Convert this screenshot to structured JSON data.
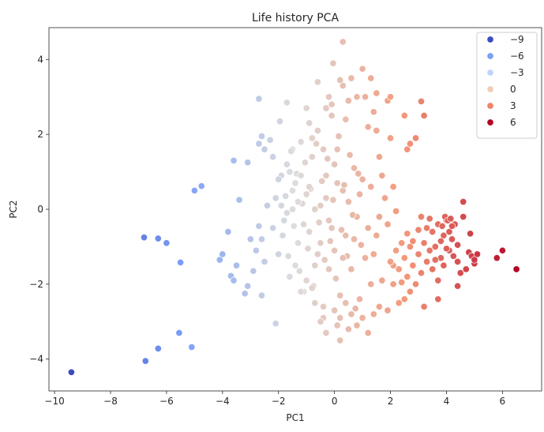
{
  "chart_data": {
    "type": "scatter",
    "title": "Life history PCA",
    "xlabel": "PC1",
    "ylabel": "PC2",
    "xlim": [
      -10.2,
      7.4
    ],
    "ylim": [
      -4.85,
      4.85
    ],
    "xticks": [
      -10,
      -8,
      -6,
      -4,
      -2,
      0,
      2,
      4,
      6
    ],
    "yticks": [
      -4,
      -2,
      0,
      2,
      4
    ],
    "xtick_labels": [
      "−10",
      "−8",
      "−6",
      "−4",
      "−2",
      "0",
      "2",
      "4",
      "6"
    ],
    "ytick_labels": [
      "−4",
      "−2",
      "0",
      "2",
      "4"
    ],
    "grid": false,
    "hue_range": [
      -9.4,
      6.5
    ],
    "colormap": "coolwarm",
    "legend": {
      "placement": "top-right",
      "entries": [
        {
          "label": "−9",
          "value": -9,
          "color": "#3b4cc0"
        },
        {
          "label": "−6",
          "value": -6,
          "color": "#7b9ff9"
        },
        {
          "label": "−3",
          "value": -3,
          "color": "#c0d4f5"
        },
        {
          "label": "0",
          "value": 0,
          "color": "#f2cbb7"
        },
        {
          "label": "3",
          "value": 3,
          "color": "#ee8468"
        },
        {
          "label": "6",
          "value": 6,
          "color": "#b40426"
        }
      ]
    },
    "points": [
      [
        -9.4,
        -4.35
      ],
      [
        -6.8,
        -0.75
      ],
      [
        -6.3,
        -0.78
      ],
      [
        -6.75,
        -4.05
      ],
      [
        -6.3,
        -3.72
      ],
      [
        -5.5,
        -1.42
      ],
      [
        -5.55,
        -3.3
      ],
      [
        -5.1,
        -3.68
      ],
      [
        -4.75,
        0.62
      ],
      [
        -4.1,
        -1.35
      ],
      [
        -4.0,
        -1.2
      ],
      [
        -3.8,
        -0.6
      ],
      [
        -3.7,
        -1.78
      ],
      [
        -3.6,
        -1.9
      ],
      [
        -3.5,
        -1.5
      ],
      [
        -3.6,
        1.3
      ],
      [
        -3.4,
        0.25
      ],
      [
        -3.1,
        1.25
      ],
      [
        -3.0,
        -0.8
      ],
      [
        -3.1,
        -2.05
      ],
      [
        -3.2,
        -2.25
      ],
      [
        -2.9,
        -1.65
      ],
      [
        -2.7,
        2.95
      ],
      [
        -2.8,
        -1.1
      ],
      [
        -2.7,
        -0.45
      ],
      [
        -2.6,
        -0.8
      ],
      [
        -2.5,
        -1.4
      ],
      [
        -2.6,
        -2.3
      ],
      [
        -2.4,
        0.1
      ],
      [
        -2.7,
        1.75
      ],
      [
        -2.5,
        1.6
      ],
      [
        -2.6,
        1.95
      ],
      [
        -2.3,
        1.85
      ],
      [
        -2.2,
        1.4
      ],
      [
        -2.1,
        -3.05
      ],
      [
        -1.7,
        2.85
      ],
      [
        -1.5,
        1.6
      ],
      [
        -1.95,
        2.35
      ],
      [
        -6.0,
        -0.9
      ],
      [
        -5.0,
        0.5
      ],
      [
        -2.2,
        -0.5
      ],
      [
        -2.1,
        0.3
      ],
      [
        -2.0,
        -1.2
      ],
      [
        -1.9,
        0.9
      ],
      [
        -1.8,
        -0.3
      ],
      [
        -1.7,
        1.2
      ],
      [
        -1.6,
        -1.8
      ],
      [
        -1.5,
        0.0
      ],
      [
        -1.4,
        0.7
      ],
      [
        -1.3,
        -0.9
      ],
      [
        -1.2,
        1.8
      ],
      [
        -1.1,
        -2.2
      ],
      [
        -1.0,
        0.4
      ],
      [
        -0.9,
        -0.6
      ],
      [
        -0.8,
        1.4
      ],
      [
        -0.7,
        -1.5
      ],
      [
        -0.6,
        2.1
      ],
      [
        -0.5,
        0.1
      ],
      [
        -0.4,
        -2.6
      ],
      [
        -0.3,
        0.9
      ],
      [
        -0.2,
        -0.3
      ],
      [
        -0.1,
        2.5
      ],
      [
        0.0,
        -1.1
      ],
      [
        0.1,
        1.6
      ],
      [
        0.2,
        -2.9
      ],
      [
        0.3,
        0.5
      ],
      [
        0.4,
        -0.7
      ],
      [
        0.5,
        2.9
      ],
      [
        0.6,
        -1.6
      ],
      [
        0.7,
        1.1
      ],
      [
        0.8,
        -0.2
      ],
      [
        0.9,
        -2.4
      ],
      [
        1.0,
        0.8
      ],
      [
        1.1,
        -1.3
      ],
      [
        1.2,
        2.2
      ],
      [
        -2.0,
        0.8
      ],
      [
        -1.85,
        -0.7
      ],
      [
        -1.75,
        0.35
      ],
      [
        -1.65,
        -1.25
      ],
      [
        -1.55,
        1.55
      ],
      [
        -1.45,
        -0.45
      ],
      [
        -1.35,
        0.95
      ],
      [
        -1.25,
        -1.65
      ],
      [
        -1.15,
        0.15
      ],
      [
        -1.05,
        1.25
      ],
      [
        -0.95,
        -1.05
      ],
      [
        -0.85,
        0.55
      ],
      [
        -0.75,
        -2.05
      ],
      [
        -0.65,
        1.75
      ],
      [
        -0.55,
        -0.35
      ],
      [
        -0.45,
        0.75
      ],
      [
        -0.35,
        -1.35
      ],
      [
        -0.25,
        1.35
      ],
      [
        -0.15,
        -0.85
      ],
      [
        -0.05,
        0.25
      ],
      [
        0.05,
        -1.85
      ],
      [
        0.15,
        1.95
      ],
      [
        0.25,
        -0.55
      ],
      [
        0.35,
        0.65
      ],
      [
        0.45,
        -1.25
      ],
      [
        0.55,
        1.45
      ],
      [
        0.65,
        -0.15
      ],
      [
        0.75,
        -2.65
      ],
      [
        0.85,
        0.95
      ],
      [
        0.95,
        -0.95
      ],
      [
        -1.9,
        0.1
      ],
      [
        -1.7,
        -0.1
      ],
      [
        -1.5,
        0.5
      ],
      [
        -1.3,
        0.2
      ],
      [
        -1.1,
        -0.4
      ],
      [
        -0.9,
        0.6
      ],
      [
        -0.7,
        0.0
      ],
      [
        -0.5,
        -0.9
      ],
      [
        -0.3,
        0.3
      ],
      [
        -0.1,
        -0.5
      ],
      [
        0.1,
        0.7
      ],
      [
        0.3,
        -1.3
      ],
      [
        0.5,
        0.2
      ],
      [
        0.7,
        -0.8
      ],
      [
        0.9,
        0.4
      ],
      [
        -1.6,
        1.0
      ],
      [
        -1.4,
        -1.5
      ],
      [
        -1.2,
        0.9
      ],
      [
        -1.0,
        -1.9
      ],
      [
        -0.8,
        1.9
      ],
      [
        -0.6,
        -1.2
      ],
      [
        -0.4,
        1.6
      ],
      [
        -0.2,
        -1.6
      ],
      [
        0.0,
        1.2
      ],
      [
        0.2,
        -2.3
      ],
      [
        0.4,
        2.4
      ],
      [
        0.6,
        -2.8
      ],
      [
        -0.9,
        2.3
      ],
      [
        -0.7,
        -2.5
      ],
      [
        -0.3,
        2.7
      ],
      [
        0.1,
        -3.1
      ],
      [
        0.3,
        3.3
      ],
      [
        -0.2,
        3.0
      ],
      [
        -0.4,
        -2.9
      ],
      [
        0.8,
        3.0
      ],
      [
        -1.0,
        2.7
      ],
      [
        -1.2,
        -2.2
      ],
      [
        0.6,
        3.5
      ],
      [
        -0.05,
        3.9
      ],
      [
        0.3,
        4.47
      ],
      [
        -0.6,
        3.4
      ],
      [
        0.2,
        3.45
      ],
      [
        -0.1,
        2.8
      ],
      [
        0.5,
        -3.2
      ],
      [
        -0.3,
        -3.3
      ],
      [
        0.0,
        -2.7
      ],
      [
        0.2,
        -3.5
      ],
      [
        -0.5,
        -3.0
      ],
      [
        0.4,
        -2.5
      ],
      [
        -0.8,
        -2.1
      ],
      [
        1.3,
        -2.0
      ],
      [
        1.4,
        2.6
      ],
      [
        1.5,
        -0.7
      ],
      [
        1.6,
        1.4
      ],
      [
        1.7,
        -1.9
      ],
      [
        1.8,
        0.3
      ],
      [
        1.9,
        -2.7
      ],
      [
        2.0,
        1.9
      ],
      [
        1.3,
        0.6
      ],
      [
        1.5,
        2.1
      ],
      [
        1.7,
        0.9
      ],
      [
        1.9,
        -0.4
      ],
      [
        2.1,
        -1.5
      ],
      [
        1.2,
        -0.5
      ],
      [
        1.4,
        -1.2
      ],
      [
        1.6,
        -0.2
      ],
      [
        1.1,
        3.0
      ],
      [
        1.3,
        3.5
      ],
      [
        1.5,
        3.1
      ],
      [
        1.0,
        3.75
      ],
      [
        1.9,
        2.9
      ],
      [
        2.0,
        3.0
      ],
      [
        2.5,
        2.5
      ],
      [
        2.6,
        1.6
      ],
      [
        2.9,
        1.9
      ],
      [
        3.2,
        2.5
      ],
      [
        3.1,
        2.88
      ],
      [
        2.7,
        1.75
      ],
      [
        2.1,
        0.6
      ],
      [
        2.2,
        -0.05
      ],
      [
        1.2,
        -3.3
      ],
      [
        1.4,
        -2.8
      ],
      [
        1.6,
        -2.6
      ],
      [
        0.8,
        -3.1
      ],
      [
        1.0,
        -2.9
      ],
      [
        2.2,
        -1.1
      ],
      [
        2.3,
        -1.6
      ],
      [
        2.4,
        -0.9
      ],
      [
        2.5,
        -1.3
      ],
      [
        2.6,
        -1.8
      ],
      [
        2.7,
        -1.0
      ],
      [
        2.8,
        -1.5
      ],
      [
        2.9,
        -2.0
      ],
      [
        3.0,
        -1.2
      ],
      [
        3.1,
        -1.7
      ],
      [
        3.2,
        -0.9
      ],
      [
        3.3,
        -1.4
      ],
      [
        3.4,
        -1.1
      ],
      [
        3.5,
        -0.6
      ],
      [
        3.6,
        -1.0
      ],
      [
        3.7,
        -0.4
      ],
      [
        3.8,
        -1.3
      ],
      [
        3.9,
        -0.7
      ],
      [
        4.0,
        -0.3
      ],
      [
        4.1,
        -1.1
      ],
      [
        4.2,
        -0.8
      ],
      [
        4.3,
        -0.4
      ],
      [
        4.4,
        -1.4
      ],
      [
        4.5,
        -1.7
      ],
      [
        4.6,
        -0.2
      ],
      [
        3.1,
        -0.2
      ],
      [
        3.3,
        -0.5
      ],
      [
        3.5,
        -1.6
      ],
      [
        3.7,
        -1.9
      ],
      [
        3.9,
        -1.5
      ],
      [
        4.1,
        -0.6
      ],
      [
        2.5,
        -2.4
      ],
      [
        2.7,
        -2.2
      ],
      [
        3.2,
        -2.6
      ],
      [
        2.4,
        -1.95
      ],
      [
        2.6,
        -0.65
      ],
      [
        2.8,
        -0.85
      ],
      [
        3.0,
        -0.55
      ],
      [
        3.4,
        -0.25
      ],
      [
        3.6,
        -1.35
      ],
      [
        3.8,
        -0.85
      ],
      [
        4.0,
        -1.05
      ],
      [
        4.2,
        -0.45
      ],
      [
        4.4,
        -0.95
      ],
      [
        4.6,
        0.2
      ],
      [
        4.7,
        -1.6
      ],
      [
        4.8,
        -1.15
      ],
      [
        4.9,
        -1.25
      ],
      [
        5.0,
        -1.45
      ],
      [
        4.85,
        -0.65
      ],
      [
        3.95,
        -0.2
      ],
      [
        4.05,
        -0.3
      ],
      [
        3.85,
        -0.45
      ],
      [
        4.15,
        -0.25
      ],
      [
        4.25,
        -1.25
      ],
      [
        4.4,
        -2.05
      ],
      [
        3.7,
        -2.4
      ],
      [
        2.3,
        -2.5
      ],
      [
        2.1,
        -2.0
      ],
      [
        2.0,
        -1.4
      ],
      [
        5.8,
        -1.3
      ],
      [
        6.0,
        -1.1
      ],
      [
        6.5,
        -1.6
      ],
      [
        5.1,
        -1.2
      ],
      [
        5.0,
        -1.35
      ]
    ]
  }
}
